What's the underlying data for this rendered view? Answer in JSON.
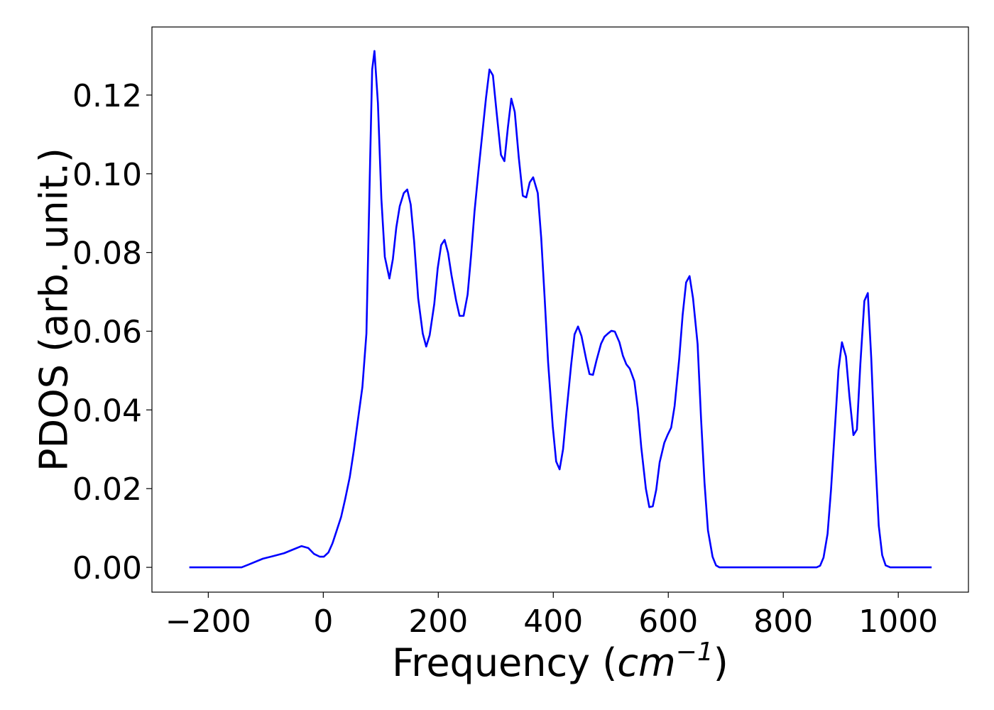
{
  "chart_data": {
    "type": "line",
    "ylabel": "PDOS (arb. unit.)",
    "xlabel": [
      "Frequency (",
      "cm",
      "−1",
      ")"
    ],
    "xlim": [
      -298,
      1122
    ],
    "ylim": [
      -0.0063,
      0.1373
    ],
    "xticks": [
      {
        "value": -200,
        "label": "−200"
      },
      0,
      200,
      400,
      600,
      800,
      1000
    ],
    "yticks": [
      {
        "value": 0,
        "label": "0.00"
      },
      0.02,
      0.04,
      0.06,
      0.08,
      {
        "value": 0.1,
        "label": "0.10"
      },
      0.12
    ],
    "grid": false,
    "series": [
      {
        "color": "#0000ff",
        "x": [
          -233,
          -142,
          -130,
          -105,
          -86,
          -68,
          -53,
          -38,
          -26,
          -16,
          -6,
          1,
          9,
          16,
          23,
          31,
          38,
          46,
          53,
          60,
          68,
          75,
          81.5,
          85,
          89,
          95,
          101,
          107,
          115,
          121,
          127,
          133,
          140,
          146,
          152,
          158,
          165,
          173,
          179,
          185,
          193,
          199,
          205,
          211,
          217,
          223,
          231,
          237,
          244,
          251,
          257,
          263,
          270,
          277,
          283,
          289,
          295,
          301,
          309,
          315,
          321,
          327,
          333,
          340,
          347,
          353,
          359,
          365,
          373,
          379,
          385,
          391,
          399,
          405,
          411,
          417,
          423,
          431,
          437,
          443,
          449,
          457,
          463,
          469,
          475,
          483,
          489,
          495,
          501,
          507,
          515,
          521,
          527,
          533,
          541,
          547,
          553,
          561,
          567,
          573,
          579,
          585,
          593,
          599,
          605,
          611,
          619,
          625,
          631,
          637,
          643,
          651,
          657,
          663,
          669,
          677,
          683,
          689,
          858,
          864,
          870,
          877,
          883,
          890,
          896,
          902,
          909,
          915,
          922,
          928,
          934,
          941,
          947,
          953,
          960,
          966,
          972,
          978,
          986,
          1058
        ],
        "values": [
          0,
          0,
          0.0007,
          0.0022,
          0.0029,
          0.0036,
          0.0045,
          0.0054,
          0.0049,
          0.0034,
          0.0027,
          0.0027,
          0.0038,
          0.0061,
          0.0092,
          0.0128,
          0.0173,
          0.0229,
          0.0296,
          0.0372,
          0.0458,
          0.0594,
          0.1036,
          0.1265,
          0.1312,
          0.118,
          0.0937,
          0.0789,
          0.0734,
          0.0783,
          0.0864,
          0.0918,
          0.0951,
          0.096,
          0.0922,
          0.0828,
          0.0684,
          0.0594,
          0.0561,
          0.059,
          0.0669,
          0.076,
          0.0819,
          0.0832,
          0.0799,
          0.0742,
          0.0678,
          0.0639,
          0.0639,
          0.0693,
          0.0792,
          0.0904,
          0.1009,
          0.1108,
          0.1193,
          0.1265,
          0.125,
          0.1162,
          0.1048,
          0.1032,
          0.1117,
          0.1191,
          0.1157,
          0.1041,
          0.0944,
          0.094,
          0.0978,
          0.0991,
          0.0951,
          0.0837,
          0.0684,
          0.0521,
          0.0359,
          0.0269,
          0.0249,
          0.03,
          0.0395,
          0.0514,
          0.0592,
          0.0612,
          0.0588,
          0.053,
          0.0491,
          0.0489,
          0.0525,
          0.0568,
          0.0586,
          0.0594,
          0.0601,
          0.0599,
          0.0572,
          0.0538,
          0.0516,
          0.0505,
          0.0473,
          0.0404,
          0.0305,
          0.02,
          0.0153,
          0.0155,
          0.0197,
          0.0267,
          0.0316,
          0.0337,
          0.0355,
          0.041,
          0.053,
          0.0642,
          0.0724,
          0.074,
          0.0684,
          0.0567,
          0.0377,
          0.0215,
          0.0094,
          0.0027,
          0.0005,
          0,
          0,
          0.0004,
          0.0025,
          0.0085,
          0.0197,
          0.0359,
          0.0502,
          0.0572,
          0.0536,
          0.0435,
          0.0336,
          0.035,
          0.0516,
          0.0677,
          0.0697,
          0.0531,
          0.0278,
          0.0106,
          0.0031,
          0.0005,
          0,
          0
        ]
      }
    ]
  }
}
